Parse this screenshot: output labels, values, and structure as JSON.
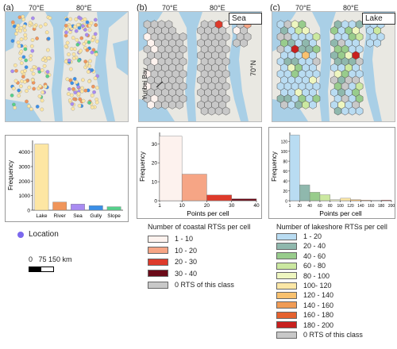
{
  "panels": {
    "a": {
      "label": "(a)"
    },
    "b": {
      "label": "(b)",
      "tag": "Sea",
      "annotation": "Yuribei Bay"
    },
    "c": {
      "label": "(c)",
      "tag": "Lake"
    }
  },
  "map_axes": {
    "lon1": "70°E",
    "lon2": "80°E",
    "lat": "70°N"
  },
  "panel_a_legend": {
    "location_label": "Location",
    "location_color": "#7b68ee"
  },
  "scale_bar": {
    "label": "0   75 150 km"
  },
  "colors": {
    "water": "#a9cfe6",
    "land": "#e9e8e2",
    "lake_bar": "#fde6a3",
    "river_bar": "#f0955a",
    "sea_bar": "#a98bf2",
    "gully_bar": "#3a8fe8",
    "slope_bar": "#55d08a"
  },
  "chart_data": [
    {
      "type": "bar",
      "categories": [
        "Lake",
        "River",
        "Sea",
        "Gully",
        "Slope"
      ],
      "values": [
        4550,
        560,
        420,
        310,
        240
      ],
      "xlabel": "",
      "ylabel": "Frequency",
      "ylim": [
        0,
        4800
      ],
      "yticks": [
        0,
        1000,
        2000,
        3000,
        4000
      ],
      "colors": [
        "#fde6a3",
        "#f0955a",
        "#a98bf2",
        "#3a8fe8",
        "#55d08a"
      ]
    },
    {
      "type": "bar",
      "bins": [
        [
          1,
          10
        ],
        [
          10,
          20
        ],
        [
          20,
          30
        ],
        [
          30,
          40
        ]
      ],
      "values": [
        34,
        14,
        3,
        1
      ],
      "xlabel": "Points per cell",
      "ylabel": "Frequency",
      "ylim": [
        0,
        36
      ],
      "yticks": [
        0,
        10,
        20,
        30
      ],
      "xticks": [
        1,
        10,
        20,
        30,
        40
      ],
      "colors": [
        "#fdf2ee",
        "#f6a585",
        "#de3a2b",
        "#6b0a18"
      ]
    },
    {
      "type": "bar",
      "bins": [
        [
          1,
          20
        ],
        [
          20,
          40
        ],
        [
          40,
          60
        ],
        [
          60,
          80
        ],
        [
          80,
          100
        ],
        [
          100,
          120
        ],
        [
          120,
          140
        ],
        [
          140,
          160
        ],
        [
          160,
          180
        ],
        [
          180,
          200
        ]
      ],
      "values": [
        133,
        32,
        17,
        12,
        2,
        5,
        2,
        1,
        0,
        1
      ],
      "xlabel": "Points per cell",
      "ylabel": "Frequency",
      "ylim": [
        0,
        138
      ],
      "yticks": [
        0,
        20,
        40,
        60,
        80,
        100,
        120
      ],
      "xticks": [
        1,
        20,
        40,
        60,
        80,
        100,
        120,
        140,
        160,
        180,
        200
      ],
      "colors": [
        "#b9dcf2",
        "#8fb8ad",
        "#98cc8c",
        "#cbe8a0",
        "#eef6c0",
        "#fbe7a6",
        "#f8c16f",
        "#f09b55",
        "#e5622f",
        "#c8201e"
      ]
    }
  ],
  "legend_b": {
    "title": "Number of coastal  RTSs per cell",
    "items": [
      {
        "label": "1 - 10",
        "color": "#fdf2ee"
      },
      {
        "label": "10 - 20",
        "color": "#f6a585"
      },
      {
        "label": "20 - 30",
        "color": "#de3a2b"
      },
      {
        "label": "30 - 40",
        "color": "#6b0a18"
      },
      {
        "label": "0 RTS of this class",
        "color": "#c8c8c8"
      }
    ]
  },
  "legend_c": {
    "title": "Number of lakeshore RTSs per cell",
    "items": [
      {
        "label": "1 - 20",
        "color": "#b9dcf2"
      },
      {
        "label": "20 - 40",
        "color": "#8fb8ad"
      },
      {
        "label": "40 - 60",
        "color": "#98cc8c"
      },
      {
        "label": "60 - 80",
        "color": "#cbe8a0"
      },
      {
        "label": "80 - 100",
        "color": "#eef6c0"
      },
      {
        "label": "100- 120",
        "color": "#fbe7a6"
      },
      {
        "label": "120 - 140",
        "color": "#f8c16f"
      },
      {
        "label": "140 - 160",
        "color": "#f09b55"
      },
      {
        "label": "160 - 180",
        "color": "#e5622f"
      },
      {
        "label": "180 - 200",
        "color": "#c8201e"
      },
      {
        "label": "0 RTS of this class",
        "color": "#c8c8c8"
      }
    ]
  }
}
